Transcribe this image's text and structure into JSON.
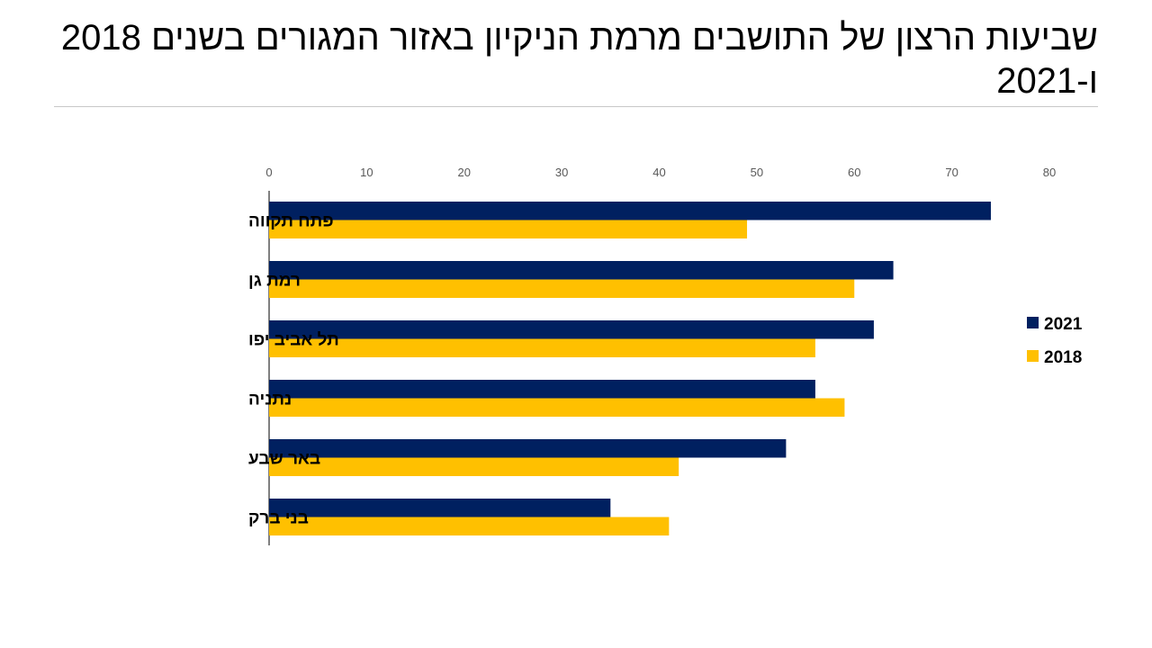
{
  "slide": {
    "title": "שביעות הרצון של התושבים מרמת הניקיון באזור המגורים בשנים 2018 ו-2021"
  },
  "chart_data": {
    "type": "bar",
    "orientation": "horizontal",
    "title": "שביעות הרצון של התושבים מרמת הניקיון באזור המגורים בשנים 2018 ו-2021",
    "xlabel": "",
    "ylabel": "",
    "xlim": [
      0,
      80
    ],
    "x_ticks": [
      0,
      10,
      20,
      30,
      40,
      50,
      60,
      70,
      80
    ],
    "x_axis_position": "top",
    "grid": false,
    "legend_position": "right",
    "categories": [
      "פתח תקווה",
      "רמת גן",
      "תל אביב יפו",
      "נתניה",
      "באר שבע",
      "בני ברק"
    ],
    "series": [
      {
        "name": "2021",
        "color": "#002060",
        "values": [
          74,
          64,
          62,
          56,
          53,
          35
        ]
      },
      {
        "name": "2018",
        "color": "#FFC000",
        "values": [
          49,
          60,
          56,
          59,
          42,
          41
        ]
      }
    ]
  }
}
